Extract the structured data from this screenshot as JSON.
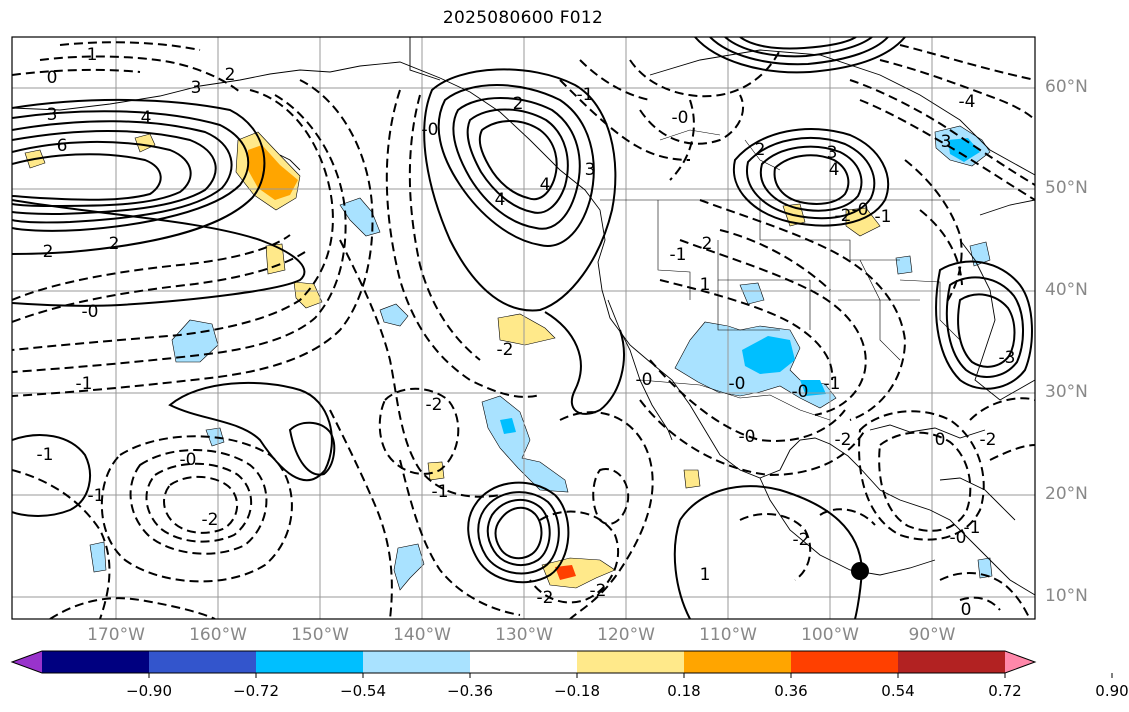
{
  "title": "2025080600 F012",
  "lat_labels": [
    "60°N",
    "50°N",
    "40°N",
    "30°N",
    "20°N",
    "10°N"
  ],
  "lon_labels": [
    "170°W",
    "160°W",
    "150°W",
    "140°W",
    "130°W",
    "120°W",
    "110°W",
    "100°W",
    "90°W"
  ],
  "colorbar": {
    "colors": [
      "#9933cc",
      "#000080",
      "#3355cc",
      "#00bfff",
      "#a9e2ff",
      "#ffffff",
      "#ffe98a",
      "#ffa500",
      "#ff4000",
      "#b22222",
      "#ff88aa"
    ],
    "ticks": [
      "−0.90",
      "−0.72",
      "−0.54",
      "−0.36",
      "−0.18",
      "0.18",
      "0.36",
      "0.54",
      "0.72",
      "0.90"
    ],
    "extend": "both"
  },
  "contour_labels": [
    "1",
    "0",
    "3",
    "6",
    "2",
    "2",
    "4",
    "2",
    "3",
    "-0",
    "-1",
    "-1",
    "-0",
    "-2",
    "4",
    "4",
    "3",
    "2",
    "-2",
    "-1",
    "-0",
    "2",
    "-0",
    "-2",
    "-1",
    "-2",
    "-2",
    "-1",
    "-0",
    "1",
    "-2",
    "0",
    "4",
    "3",
    "2",
    "-4",
    "3",
    "-2",
    "-1",
    "0",
    "-0",
    "-2",
    "-3",
    "-0",
    "1",
    "-1",
    "-0",
    "-0",
    "-2",
    "-0",
    "-1",
    "-1"
  ],
  "marker": "storm-center"
}
